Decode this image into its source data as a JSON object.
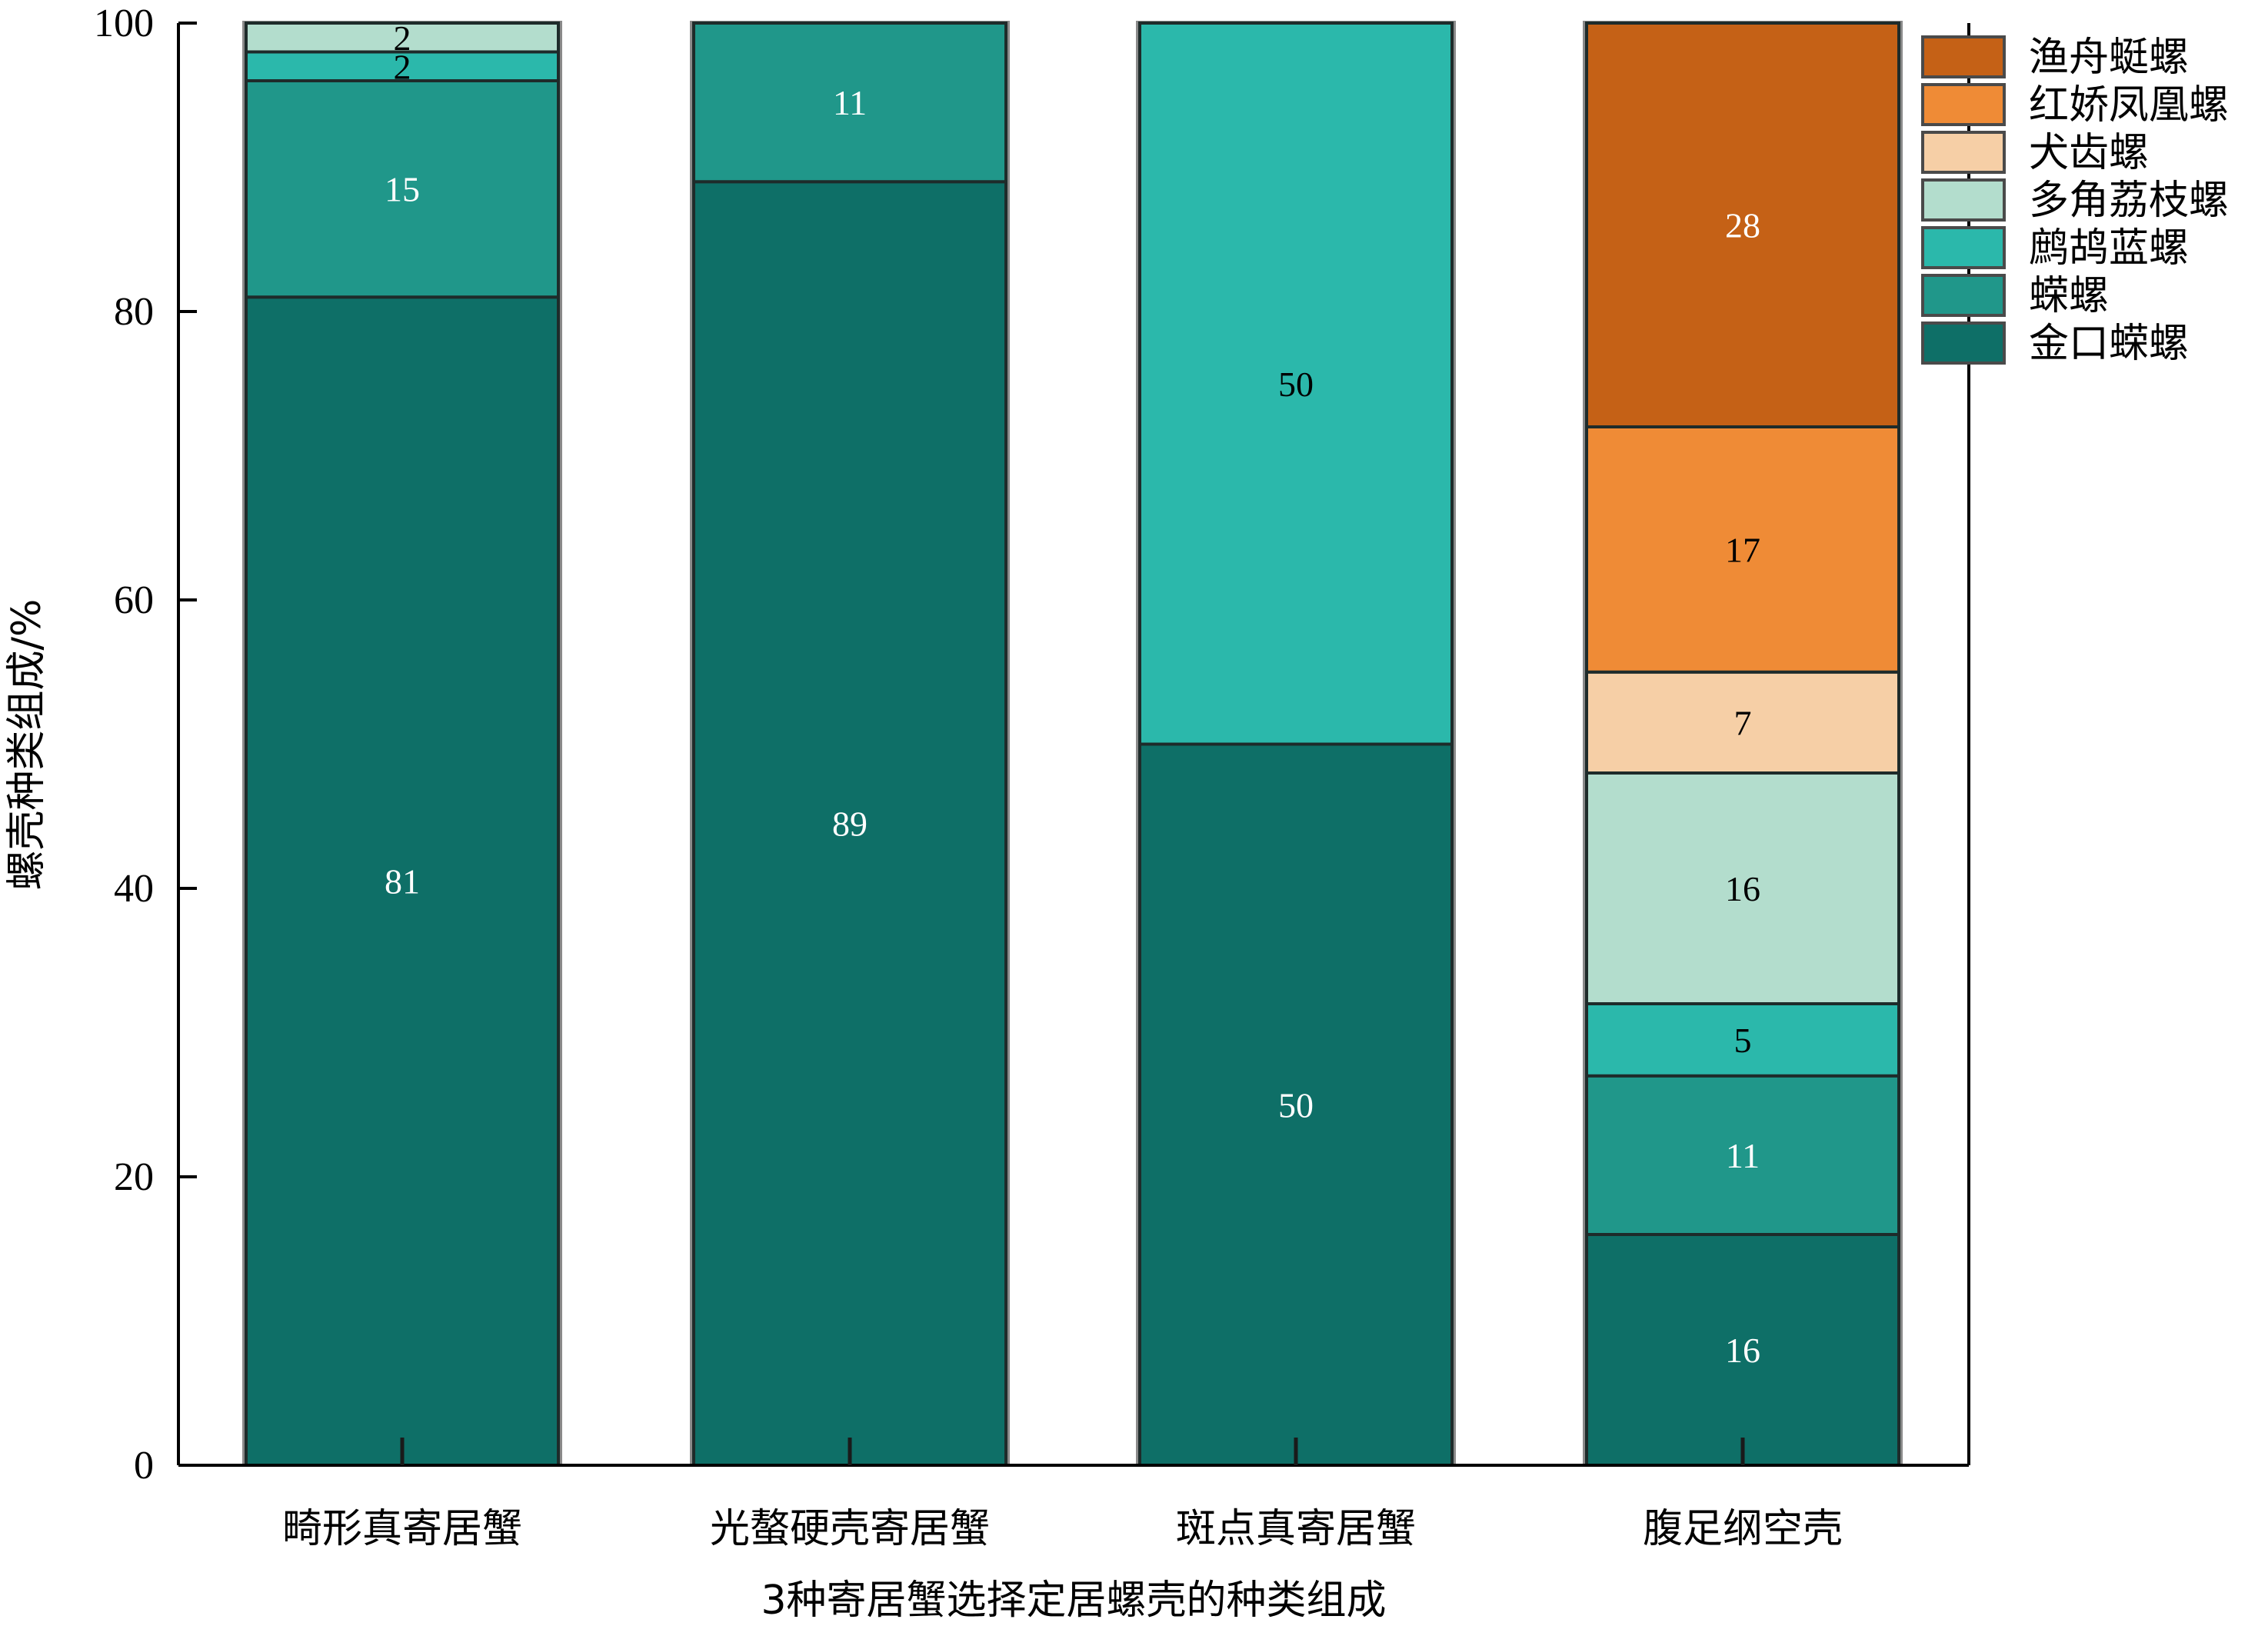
{
  "chart_data": {
    "type": "bar",
    "stacked": true,
    "categories": [
      "畸形真寄居蟹",
      "光螯硬壳寄居蟹",
      "斑点真寄居蟹",
      "腹足纲空壳"
    ],
    "series": [
      {
        "name": "金口蝾螺",
        "color": "#0e6f67",
        "label_color": "#ffffff",
        "values": [
          81,
          89,
          50,
          16
        ]
      },
      {
        "name": "蝾螺",
        "color": "#20978a",
        "label_color": "#ffffff",
        "values": [
          15,
          11,
          0,
          11
        ]
      },
      {
        "name": "鹧鸪蓝螺",
        "color": "#2bb8ab",
        "label_color": "#000000",
        "values": [
          2,
          0,
          50,
          5
        ]
      },
      {
        "name": "多角荔枝螺",
        "color": "#b3ddcd",
        "label_color": "#000000",
        "values": [
          2,
          0,
          0,
          16
        ]
      },
      {
        "name": "犬齿螺",
        "color": "#f6cfa6",
        "label_color": "#000000",
        "values": [
          0,
          0,
          0,
          7
        ]
      },
      {
        "name": "红娇凤凰螺",
        "color": "#ef8b36",
        "label_color": "#000000",
        "values": [
          0,
          0,
          0,
          17
        ]
      },
      {
        "name": "渔舟蜓螺",
        "color": "#c56116",
        "label_color": "#ffffff",
        "values": [
          0,
          0,
          0,
          28
        ]
      }
    ],
    "xlabel": "3种寄居蟹选择定居螺壳的种类组成",
    "ylabel": "螺壳种类组成/%",
    "ylim": [
      0,
      100
    ],
    "yticks": [
      0,
      20,
      40,
      60,
      80,
      100
    ],
    "legend_position": "right",
    "grid": false
  }
}
